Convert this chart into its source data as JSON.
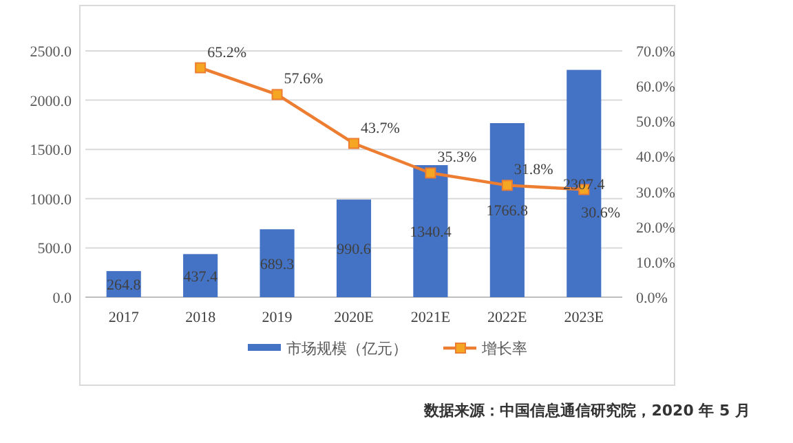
{
  "chart_data": {
    "type": "bar",
    "categories": [
      "2017",
      "2018",
      "2019",
      "2020E",
      "2021E",
      "2022E",
      "2023E"
    ],
    "series": [
      {
        "name": "市场规模（亿元）",
        "color": "#4472c4",
        "values": [
          264.8,
          437.4,
          689.3,
          990.6,
          1340.4,
          1766.8,
          2307.4
        ],
        "value_labels": [
          "264.8",
          "437.4",
          "689.3",
          "990.6",
          "1340.4",
          "1766.8",
          "2307.4"
        ]
      },
      {
        "name": "增长率",
        "type": "line",
        "axis": "y2",
        "color": "#ed7d31",
        "values": [
          null,
          65.2,
          57.6,
          43.7,
          35.3,
          31.8,
          30.6
        ],
        "value_labels": [
          null,
          "65.2%",
          "57.6%",
          "43.7%",
          "35.3%",
          "31.8%",
          "30.6%"
        ]
      }
    ],
    "ylim": [
      0,
      2500
    ],
    "yticks": [
      {
        "value": 0,
        "label": "0.0"
      },
      {
        "value": 500,
        "label": "500.0"
      },
      {
        "value": 1000,
        "label": "1000.0"
      },
      {
        "value": 1500,
        "label": "1500.0"
      },
      {
        "value": 2000,
        "label": "2000.0"
      },
      {
        "value": 2500,
        "label": "2500.0"
      }
    ],
    "y2lim": [
      0,
      70
    ],
    "y2ticks": [
      {
        "value": 0,
        "label": "0.0%"
      },
      {
        "value": 10,
        "label": "10.0%"
      },
      {
        "value": 20,
        "label": "20.0%"
      },
      {
        "value": 30,
        "label": "30.0%"
      },
      {
        "value": 40,
        "label": "40.0%"
      },
      {
        "value": 50,
        "label": "50.0%"
      },
      {
        "value": 60,
        "label": "60.0%"
      },
      {
        "value": 70,
        "label": "70.0%"
      }
    ],
    "grid": "y",
    "legend": "bottom",
    "marker": "square",
    "annotations": [
      "数据来源：中国信息通信研究院，2020 年 5 月"
    ]
  }
}
